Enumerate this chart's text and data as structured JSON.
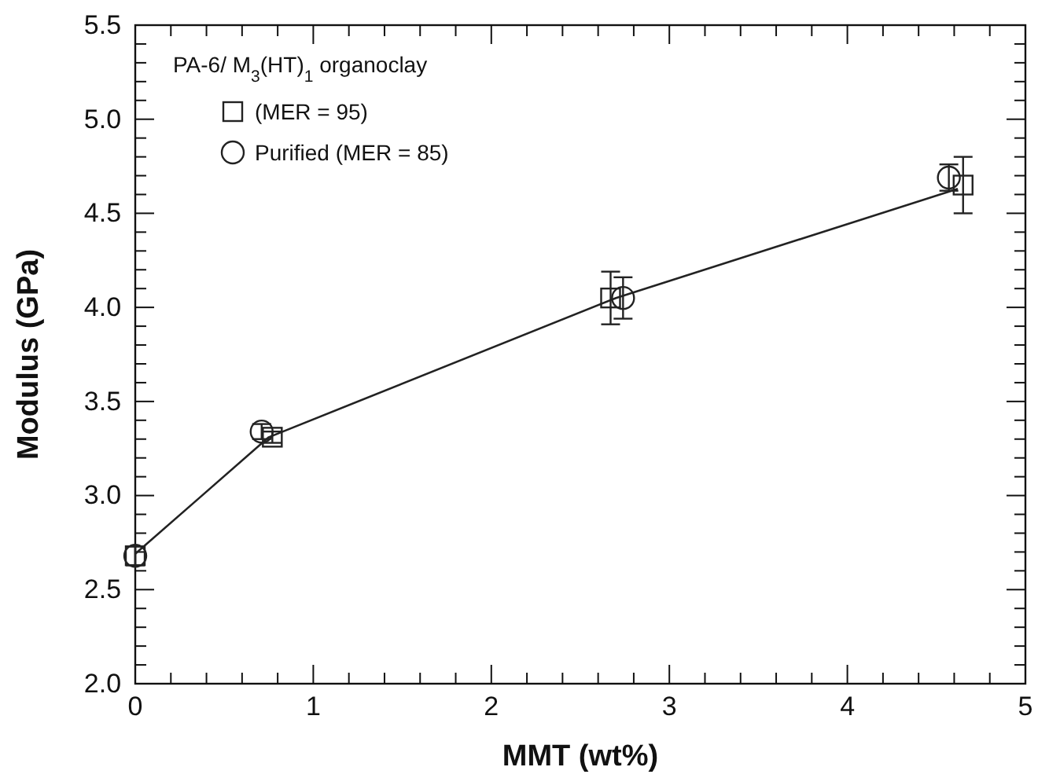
{
  "chart_data": {
    "type": "scatter",
    "xlabel": "MMT (wt%)",
    "ylabel": "Modulus (GPa)",
    "legend_title": "PA-6/ M$_{3}$(HT)$_{1}$ organoclay",
    "legend": "top left",
    "grid": false,
    "xlim": [
      0,
      5
    ],
    "ylim": [
      2.0,
      5.5
    ],
    "xticks": [
      0,
      {
        "value": 0.2,
        "label": null
      },
      {
        "value": 0.4,
        "label": null
      },
      {
        "value": 0.6,
        "label": null
      },
      {
        "value": 0.8,
        "label": null
      },
      1,
      {
        "value": 1.2,
        "label": null
      },
      {
        "value": 1.4,
        "label": null
      },
      {
        "value": 1.6,
        "label": null
      },
      {
        "value": 1.8,
        "label": null
      },
      2,
      {
        "value": 2.2,
        "label": null
      },
      {
        "value": 2.4,
        "label": null
      },
      {
        "value": 2.6,
        "label": null
      },
      {
        "value": 2.8,
        "label": null
      },
      3,
      {
        "value": 3.2,
        "label": null
      },
      {
        "value": 3.4,
        "label": null
      },
      {
        "value": 3.6,
        "label": null
      },
      {
        "value": 3.8,
        "label": null
      },
      4,
      {
        "value": 4.2,
        "label": null
      },
      {
        "value": 4.4,
        "label": null
      },
      {
        "value": 4.6,
        "label": null
      },
      {
        "value": 4.8,
        "label": null
      },
      5
    ],
    "yticks": [
      {
        "value": 2.0,
        "label": "2.0"
      },
      {
        "value": 2.1,
        "label": null
      },
      {
        "value": 2.2,
        "label": null
      },
      {
        "value": 2.3,
        "label": null
      },
      {
        "value": 2.4,
        "label": null
      },
      2.5,
      {
        "value": 2.6,
        "label": null
      },
      {
        "value": 2.7,
        "label": null
      },
      {
        "value": 2.8,
        "label": null
      },
      {
        "value": 2.9,
        "label": null
      },
      {
        "value": 3.0,
        "label": "3.0"
      },
      {
        "value": 3.1,
        "label": null
      },
      {
        "value": 3.2,
        "label": null
      },
      {
        "value": 3.3,
        "label": null
      },
      {
        "value": 3.4,
        "label": null
      },
      3.5,
      {
        "value": 3.6,
        "label": null
      },
      {
        "value": 3.7,
        "label": null
      },
      {
        "value": 3.8,
        "label": null
      },
      {
        "value": 3.9,
        "label": null
      },
      {
        "value": 4.0,
        "label": "4.0"
      },
      {
        "value": 4.1,
        "label": null
      },
      {
        "value": 4.2,
        "label": null
      },
      {
        "value": 4.3,
        "label": null
      },
      {
        "value": 4.4,
        "label": null
      },
      4.5,
      {
        "value": 4.6,
        "label": null
      },
      {
        "value": 4.7,
        "label": null
      },
      {
        "value": 4.8,
        "label": null
      },
      {
        "value": 4.9,
        "label": null
      },
      {
        "value": 5.0,
        "label": "5.0"
      },
      {
        "value": 5.1,
        "label": null
      },
      {
        "value": 5.2,
        "label": null
      },
      {
        "value": 5.3,
        "label": null
      },
      {
        "value": 5.4,
        "label": null
      },
      5.5
    ],
    "series": [
      {
        "name": "(MER = 95)",
        "color": "#222222",
        "marker": "square",
        "x": [
          0,
          0.77,
          2.67,
          4.65
        ],
        "values": [
          2.68,
          3.31,
          4.05,
          4.65
        ],
        "errors": [
          0.05,
          0.03,
          0.14,
          0.15
        ]
      },
      {
        "name": "Purified (MER = 85)",
        "color": "#222222",
        "marker": "circle",
        "x": [
          0,
          0.71,
          2.74,
          4.57
        ],
        "values": [
          2.68,
          3.34,
          4.05,
          4.69
        ],
        "errors": [
          0.05,
          0.04,
          0.11,
          0.07
        ]
      },
      {
        "type": "line",
        "color": "#222222",
        "x": [
          0,
          0.75,
          2.7,
          4.62
        ],
        "values": [
          2.69,
          3.31,
          4.05,
          4.63
        ],
        "marker": "none",
        "line_style": "solid"
      }
    ]
  }
}
